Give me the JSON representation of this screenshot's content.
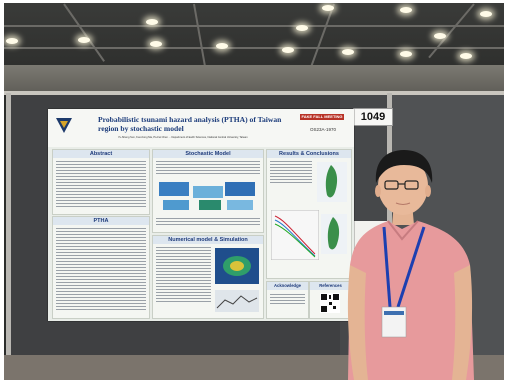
{
  "poster": {
    "title": "Probabilistic tsunami hazard analysis (PTHA) of Taiwan region by stochastic model",
    "badge": "FAKE FALL MEETING",
    "code": "OS23A-1970",
    "authors": "Yu-Sheng Sun, Kuo-Fong Ma, Po-Fei Chen ... Department of Earth Sciences, National Central University, Taiwan",
    "sections": {
      "abstract": "Abstract",
      "stochastic": "Stochastic Model",
      "results": "Results & Conclusions",
      "ptha": "PTHA",
      "numerical": "Numerical model & Simulation",
      "acknowledge": "Acknowledge",
      "references": "References"
    }
  },
  "booth_number": "1049",
  "colors": {
    "poster_title": "#1b3b7a",
    "shirt": "#e79a9c",
    "lanyard": "#1d3fb0",
    "panel": "#3f4042"
  }
}
